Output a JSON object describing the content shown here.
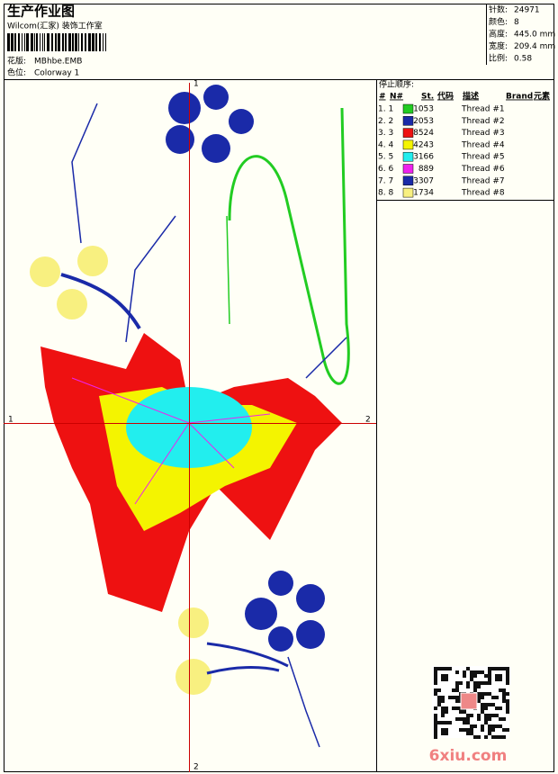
{
  "header": {
    "title": "生产作业图",
    "subtitle": "Wilcom(汇家) 装饰工作室",
    "design_label": "花版:",
    "design_file": "MBhbe.EMB",
    "colorway_label": "色位:",
    "colorway": "Colorway 1"
  },
  "info": [
    {
      "label": "针数:",
      "value": "24971"
    },
    {
      "label": "颜色:",
      "value": "8"
    },
    {
      "label": "高度:",
      "value": "445.0 mm"
    },
    {
      "label": "宽度:",
      "value": "209.4 mm"
    },
    {
      "label": "比例:",
      "value": "0.58"
    }
  ],
  "stop_sequence": {
    "title": "停止顺序:",
    "columns": [
      "#",
      "N#",
      "St.",
      "代码",
      "描述",
      "Brand",
      "元素"
    ],
    "rows": [
      {
        "index": "1. 1",
        "color": "#22cc22",
        "code": "1053",
        "description": "Thread #1"
      },
      {
        "index": "2. 2",
        "color": "#1a2aa8",
        "code": "2053",
        "description": "Thread #2"
      },
      {
        "index": "3. 3",
        "color": "#ee1111",
        "code": "8524",
        "description": "Thread #3"
      },
      {
        "index": "4. 4",
        "color": "#f4f400",
        "code": "4243",
        "description": "Thread #4"
      },
      {
        "index": "5. 5",
        "color": "#22eeee",
        "code": "3166",
        "description": "Thread #5"
      },
      {
        "index": "6. 6",
        "color": "#ee22ee",
        "code": "889",
        "description": "Thread #6"
      },
      {
        "index": "7. 7",
        "color": "#1a2aa8",
        "code": "3307",
        "description": "Thread #7"
      },
      {
        "index": "8. 8",
        "color": "#f8f080",
        "code": "1734",
        "description": "Thread #8"
      }
    ]
  },
  "axis_labels": {
    "top": "1",
    "bottom": "2",
    "left": "1",
    "right": "2"
  },
  "watermark": "6xiu.com"
}
